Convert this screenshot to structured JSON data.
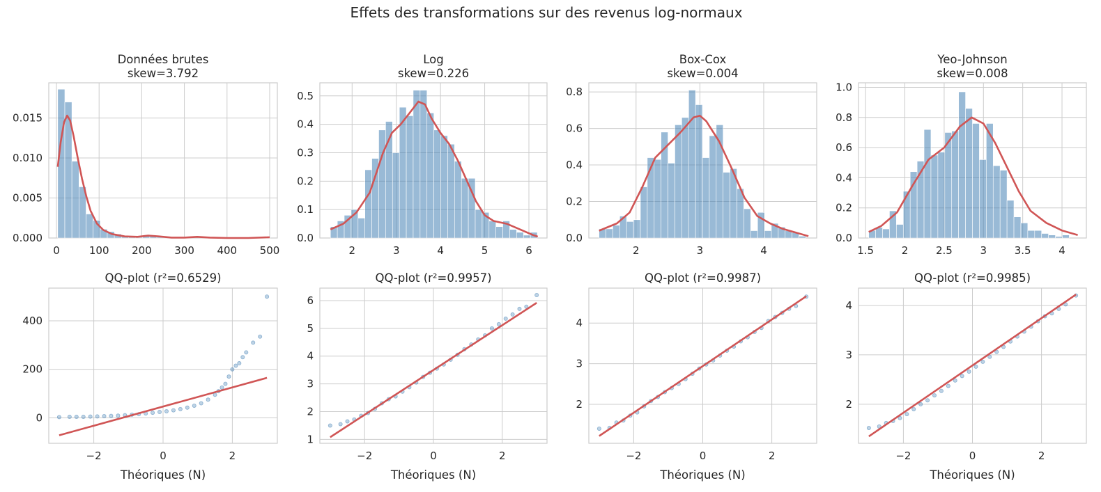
{
  "figure": {
    "title": "Effets des transformations sur des revenus log-normaux"
  },
  "chart_data": [
    {
      "type": "bar",
      "kind": "histogram_with_kde",
      "title": "Données brutes\nskew=3.792",
      "xlim": [
        -18,
        518
      ],
      "ylim": [
        0,
        0.0194
      ],
      "xticks": [
        0,
        100,
        200,
        300,
        400,
        500
      ],
      "yticks": [
        0.0,
        0.005,
        0.01,
        0.015
      ],
      "ytick_labels": [
        "0.000",
        "0.005",
        "0.010",
        "0.015"
      ],
      "bin_start": 3,
      "bin_width": 16.6,
      "values": [
        0.0186,
        0.017,
        0.0096,
        0.0064,
        0.003,
        0.0022,
        0.0011,
        0.0008,
        0.0005,
        0.0003,
        0.0002,
        0.0001,
        0.0002,
        0.0003,
        0.0002,
        0.0001,
        0.0,
        0.0,
        0.0,
        0.0,
        0.0,
        0.0,
        0.0,
        0.0,
        0.0,
        0.0,
        0.0,
        0.0,
        0.0,
        0.0001
      ],
      "kde": [
        [
          3,
          0.0089
        ],
        [
          10,
          0.012
        ],
        [
          18,
          0.0145
        ],
        [
          25,
          0.0153
        ],
        [
          32,
          0.0147
        ],
        [
          40,
          0.0128
        ],
        [
          50,
          0.01
        ],
        [
          60,
          0.0074
        ],
        [
          70,
          0.0052
        ],
        [
          80,
          0.0034
        ],
        [
          95,
          0.0018
        ],
        [
          110,
          0.001
        ],
        [
          130,
          0.0005
        ],
        [
          160,
          0.0002
        ],
        [
          190,
          0.00015
        ],
        [
          215,
          0.0003
        ],
        [
          240,
          0.0002
        ],
        [
          270,
          5e-05
        ],
        [
          300,
          5e-05
        ],
        [
          330,
          0.00015
        ],
        [
          360,
          5e-05
        ],
        [
          400,
          0.0
        ],
        [
          450,
          0.0
        ],
        [
          500,
          0.0001
        ]
      ],
      "grid": true
    },
    {
      "type": "bar",
      "kind": "histogram_with_kde",
      "title": "Log\nskew=0.226",
      "xlim": [
        1.27,
        6.41
      ],
      "ylim": [
        0,
        0.546
      ],
      "xticks": [
        2,
        3,
        4,
        5,
        6
      ],
      "yticks": [
        0.0,
        0.1,
        0.2,
        0.3,
        0.4,
        0.5
      ],
      "ytick_labels": [
        "0.0",
        "0.1",
        "0.2",
        "0.3",
        "0.4",
        "0.5"
      ],
      "bin_start": 1.51,
      "bin_width": 0.156,
      "values": [
        0.04,
        0.06,
        0.08,
        0.1,
        0.07,
        0.24,
        0.28,
        0.38,
        0.41,
        0.3,
        0.46,
        0.43,
        0.52,
        0.52,
        0.44,
        0.38,
        0.36,
        0.33,
        0.27,
        0.21,
        0.21,
        0.1,
        0.09,
        0.06,
        0.04,
        0.06,
        0.03,
        0.02,
        0.01,
        0.02
      ],
      "kde": [
        [
          1.51,
          0.03
        ],
        [
          1.8,
          0.05
        ],
        [
          2.1,
          0.09
        ],
        [
          2.4,
          0.16
        ],
        [
          2.7,
          0.3
        ],
        [
          2.9,
          0.37
        ],
        [
          3.1,
          0.4
        ],
        [
          3.3,
          0.44
        ],
        [
          3.5,
          0.48
        ],
        [
          3.65,
          0.47
        ],
        [
          3.8,
          0.42
        ],
        [
          4.0,
          0.37
        ],
        [
          4.2,
          0.33
        ],
        [
          4.4,
          0.27
        ],
        [
          4.6,
          0.2
        ],
        [
          4.8,
          0.13
        ],
        [
          5.0,
          0.08
        ],
        [
          5.2,
          0.06
        ],
        [
          5.5,
          0.05
        ],
        [
          5.8,
          0.03
        ],
        [
          6.1,
          0.01
        ],
        [
          6.2,
          0.005
        ]
      ],
      "grid": true
    },
    {
      "type": "bar",
      "kind": "histogram_with_kde",
      "title": "Box-Cox\nskew=0.004",
      "xlim": [
        1.26,
        4.83
      ],
      "ylim": [
        0,
        0.85
      ],
      "xticks": [
        2,
        3,
        4
      ],
      "yticks": [
        0.0,
        0.2,
        0.4,
        0.6,
        0.8
      ],
      "ytick_labels": [
        "0.0",
        "0.2",
        "0.4",
        "0.6",
        "0.8"
      ],
      "bin_start": 1.42,
      "bin_width": 0.108,
      "values": [
        0.05,
        0.05,
        0.07,
        0.12,
        0.09,
        0.1,
        0.28,
        0.44,
        0.43,
        0.58,
        0.41,
        0.62,
        0.66,
        0.81,
        0.73,
        0.44,
        0.56,
        0.62,
        0.36,
        0.38,
        0.27,
        0.16,
        0.04,
        0.14,
        0.04,
        0.08,
        0.06,
        0.04,
        0.03,
        0.01
      ],
      "kde": [
        [
          1.42,
          0.04
        ],
        [
          1.7,
          0.08
        ],
        [
          1.9,
          0.14
        ],
        [
          2.1,
          0.28
        ],
        [
          2.3,
          0.44
        ],
        [
          2.5,
          0.51
        ],
        [
          2.7,
          0.58
        ],
        [
          2.9,
          0.66
        ],
        [
          3.0,
          0.67
        ],
        [
          3.1,
          0.64
        ],
        [
          3.3,
          0.53
        ],
        [
          3.5,
          0.38
        ],
        [
          3.7,
          0.22
        ],
        [
          3.9,
          0.12
        ],
        [
          4.1,
          0.08
        ],
        [
          4.3,
          0.05
        ],
        [
          4.5,
          0.03
        ],
        [
          4.7,
          0.01
        ]
      ],
      "grid": true
    },
    {
      "type": "bar",
      "kind": "histogram_with_kde",
      "title": "Yeo-Johnson\nskew=0.008",
      "xlim": [
        1.41,
        4.31
      ],
      "ylim": [
        0,
        1.03
      ],
      "xticks": [
        1.5,
        2.0,
        2.5,
        3.0,
        3.5,
        4.0
      ],
      "yticks": [
        0.0,
        0.2,
        0.4,
        0.6,
        0.8,
        1.0
      ],
      "ytick_labels": [
        "0.0",
        "0.2",
        "0.4",
        "0.6",
        "0.8",
        "1.0"
      ],
      "bin_start": 1.54,
      "bin_width": 0.088,
      "values": [
        0.05,
        0.07,
        0.06,
        0.18,
        0.09,
        0.31,
        0.44,
        0.51,
        0.72,
        0.55,
        0.57,
        0.7,
        0.71,
        0.97,
        0.86,
        0.76,
        0.52,
        0.76,
        0.48,
        0.45,
        0.25,
        0.14,
        0.1,
        0.05,
        0.05,
        0.03,
        0.02,
        0.01,
        0.02,
        0.0
      ],
      "kde": [
        [
          1.54,
          0.04
        ],
        [
          1.7,
          0.08
        ],
        [
          1.9,
          0.17
        ],
        [
          2.1,
          0.35
        ],
        [
          2.3,
          0.52
        ],
        [
          2.5,
          0.6
        ],
        [
          2.7,
          0.74
        ],
        [
          2.85,
          0.8
        ],
        [
          3.0,
          0.76
        ],
        [
          3.15,
          0.63
        ],
        [
          3.3,
          0.47
        ],
        [
          3.45,
          0.31
        ],
        [
          3.6,
          0.18
        ],
        [
          3.8,
          0.1
        ],
        [
          4.0,
          0.05
        ],
        [
          4.2,
          0.02
        ]
      ],
      "grid": true
    },
    {
      "type": "scatter",
      "kind": "qq_plot",
      "title": "QQ-plot (r²=0.6529)",
      "xlabel": "Théoriques (N)",
      "xlim": [
        -3.3,
        3.3
      ],
      "ylim": [
        -105,
        535
      ],
      "xticks": [
        -2,
        0,
        2
      ],
      "xtick_labels": [
        "−2",
        "0",
        "2"
      ],
      "yticks": [
        0,
        200,
        400
      ],
      "ytick_labels": [
        "0",
        "200",
        "400"
      ],
      "points": [
        [
          -3.0,
          3
        ],
        [
          -2.7,
          4
        ],
        [
          -2.5,
          4
        ],
        [
          -2.3,
          4
        ],
        [
          -2.1,
          5
        ],
        [
          -1.9,
          6
        ],
        [
          -1.7,
          7
        ],
        [
          -1.5,
          8
        ],
        [
          -1.3,
          9
        ],
        [
          -1.1,
          11
        ],
        [
          -0.9,
          13
        ],
        [
          -0.7,
          15
        ],
        [
          -0.5,
          18
        ],
        [
          -0.3,
          21
        ],
        [
          -0.1,
          24
        ],
        [
          0.1,
          27
        ],
        [
          0.3,
          31
        ],
        [
          0.5,
          36
        ],
        [
          0.7,
          42
        ],
        [
          0.9,
          50
        ],
        [
          1.1,
          60
        ],
        [
          1.3,
          75
        ],
        [
          1.5,
          95
        ],
        [
          1.6,
          110
        ],
        [
          1.7,
          125
        ],
        [
          1.8,
          140
        ],
        [
          1.9,
          170
        ],
        [
          2.0,
          200
        ],
        [
          2.1,
          215
        ],
        [
          2.2,
          225
        ],
        [
          2.3,
          250
        ],
        [
          2.4,
          270
        ],
        [
          2.6,
          310
        ],
        [
          2.8,
          335
        ],
        [
          3.0,
          500
        ]
      ],
      "fit": {
        "x": [
          -3.0,
          3.0
        ],
        "y": [
          -72,
          165
        ]
      },
      "grid": true
    },
    {
      "type": "scatter",
      "kind": "qq_plot",
      "title": "QQ-plot (r²=0.9957)",
      "xlabel": "Théoriques (N)",
      "xlim": [
        -3.3,
        3.3
      ],
      "ylim": [
        0.86,
        6.45
      ],
      "xticks": [
        -2,
        0,
        2
      ],
      "xtick_labels": [
        "−2",
        "0",
        "2"
      ],
      "yticks": [
        1,
        2,
        3,
        4,
        5,
        6
      ],
      "ytick_labels": [
        "1",
        "2",
        "3",
        "4",
        "5",
        "6"
      ],
      "points": [
        [
          -3.0,
          1.5
        ],
        [
          -2.7,
          1.55
        ],
        [
          -2.5,
          1.65
        ],
        [
          -2.3,
          1.72
        ],
        [
          -2.1,
          1.85
        ],
        [
          -1.9,
          1.95
        ],
        [
          -1.7,
          2.1
        ],
        [
          -1.5,
          2.3
        ],
        [
          -1.3,
          2.45
        ],
        [
          -1.1,
          2.55
        ],
        [
          -0.9,
          2.72
        ],
        [
          -0.7,
          2.88
        ],
        [
          -0.5,
          3.05
        ],
        [
          -0.3,
          3.25
        ],
        [
          -0.1,
          3.4
        ],
        [
          0.1,
          3.55
        ],
        [
          0.3,
          3.7
        ],
        [
          0.5,
          3.87
        ],
        [
          0.7,
          4.05
        ],
        [
          0.9,
          4.25
        ],
        [
          1.1,
          4.42
        ],
        [
          1.3,
          4.6
        ],
        [
          1.5,
          4.75
        ],
        [
          1.7,
          5.0
        ],
        [
          1.9,
          5.15
        ],
        [
          2.1,
          5.35
        ],
        [
          2.3,
          5.5
        ],
        [
          2.5,
          5.7
        ],
        [
          2.7,
          5.78
        ],
        [
          3.0,
          6.2
        ]
      ],
      "fit": {
        "x": [
          -3.0,
          3.0
        ],
        "y": [
          1.08,
          5.92
        ]
      },
      "grid": true
    },
    {
      "type": "scatter",
      "kind": "qq_plot",
      "title": "QQ-plot (r²=0.9987)",
      "xlabel": "Théoriques (N)",
      "xlim": [
        -3.3,
        3.3
      ],
      "ylim": [
        1.04,
        4.86
      ],
      "xticks": [
        -2,
        0,
        2
      ],
      "xtick_labels": [
        "−2",
        "0",
        "2"
      ],
      "yticks": [
        2,
        3,
        4
      ],
      "ytick_labels": [
        "2",
        "3",
        "4"
      ],
      "points": [
        [
          -3.0,
          1.4
        ],
        [
          -2.7,
          1.42
        ],
        [
          -2.5,
          1.55
        ],
        [
          -2.3,
          1.6
        ],
        [
          -2.1,
          1.72
        ],
        [
          -1.9,
          1.8
        ],
        [
          -1.7,
          1.95
        ],
        [
          -1.5,
          2.08
        ],
        [
          -1.3,
          2.18
        ],
        [
          -1.1,
          2.3
        ],
        [
          -0.9,
          2.4
        ],
        [
          -0.7,
          2.5
        ],
        [
          -0.5,
          2.62
        ],
        [
          -0.3,
          2.75
        ],
        [
          -0.1,
          2.88
        ],
        [
          0.1,
          2.98
        ],
        [
          0.3,
          3.08
        ],
        [
          0.5,
          3.2
        ],
        [
          0.7,
          3.32
        ],
        [
          0.9,
          3.42
        ],
        [
          1.1,
          3.55
        ],
        [
          1.3,
          3.65
        ],
        [
          1.5,
          3.78
        ],
        [
          1.7,
          3.88
        ],
        [
          1.9,
          4.05
        ],
        [
          2.1,
          4.15
        ],
        [
          2.3,
          4.25
        ],
        [
          2.5,
          4.35
        ],
        [
          2.7,
          4.42
        ],
        [
          3.0,
          4.65
        ]
      ],
      "fit": {
        "x": [
          -3.0,
          3.0
        ],
        "y": [
          1.22,
          4.66
        ]
      },
      "grid": true
    },
    {
      "type": "scatter",
      "kind": "qq_plot",
      "title": "QQ-plot (r²=0.9985)",
      "xlabel": "Théoriques (N)",
      "xlim": [
        -3.3,
        3.3
      ],
      "ylim": [
        1.21,
        4.35
      ],
      "xticks": [
        -2,
        0,
        2
      ],
      "xtick_labels": [
        "−2",
        "0",
        "2"
      ],
      "yticks": [
        2,
        3,
        4
      ],
      "ytick_labels": [
        "2",
        "3",
        "4"
      ],
      "points": [
        [
          -3.0,
          1.52
        ],
        [
          -2.7,
          1.55
        ],
        [
          -2.5,
          1.62
        ],
        [
          -2.3,
          1.66
        ],
        [
          -2.1,
          1.72
        ],
        [
          -1.9,
          1.8
        ],
        [
          -1.7,
          1.9
        ],
        [
          -1.5,
          2.0
        ],
        [
          -1.3,
          2.08
        ],
        [
          -1.1,
          2.18
        ],
        [
          -0.9,
          2.27
        ],
        [
          -0.7,
          2.37
        ],
        [
          -0.5,
          2.48
        ],
        [
          -0.3,
          2.57
        ],
        [
          -0.1,
          2.66
        ],
        [
          0.1,
          2.76
        ],
        [
          0.3,
          2.86
        ],
        [
          0.5,
          2.96
        ],
        [
          0.7,
          3.06
        ],
        [
          0.9,
          3.16
        ],
        [
          1.1,
          3.27
        ],
        [
          1.3,
          3.37
        ],
        [
          1.5,
          3.47
        ],
        [
          1.7,
          3.57
        ],
        [
          1.9,
          3.68
        ],
        [
          2.1,
          3.78
        ],
        [
          2.3,
          3.84
        ],
        [
          2.5,
          3.93
        ],
        [
          2.7,
          4.02
        ],
        [
          3.0,
          4.2
        ]
      ],
      "fit": {
        "x": [
          -3.0,
          3.0
        ],
        "y": [
          1.35,
          4.22
        ]
      },
      "grid": true
    }
  ]
}
